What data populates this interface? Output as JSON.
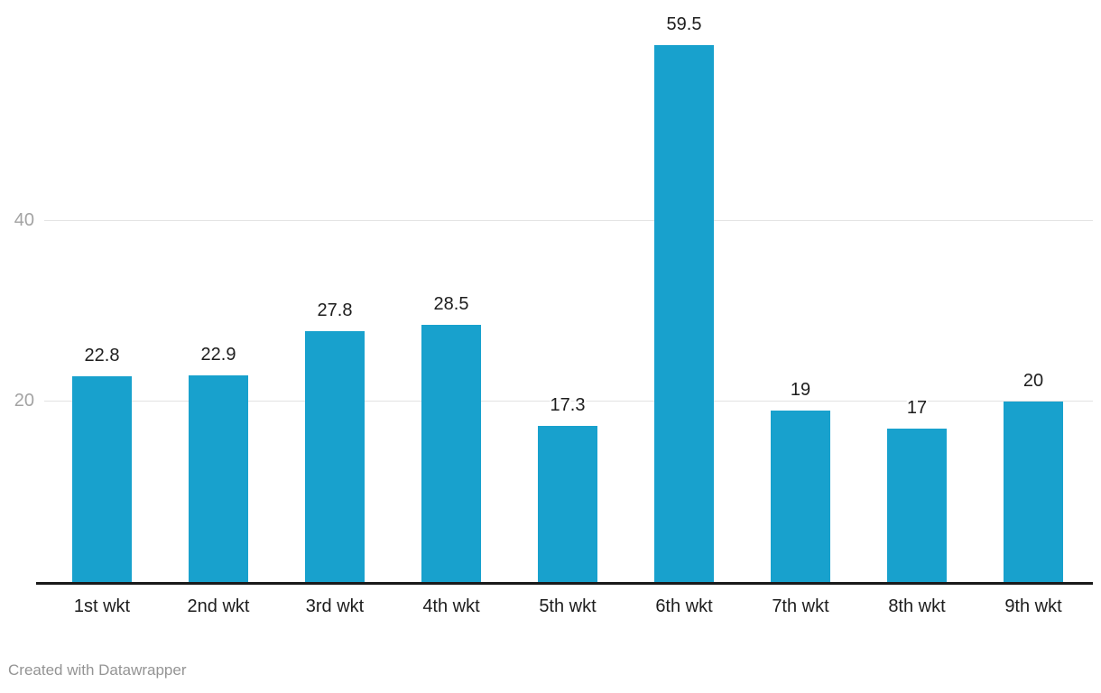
{
  "footer": {
    "attribution": "Created with Datawrapper"
  },
  "chart_data": {
    "type": "bar",
    "title": "",
    "subtitle": "",
    "xlabel": "",
    "ylabel": "",
    "categories": [
      "1st wkt",
      "2nd wkt",
      "3rd wkt",
      "4th wkt",
      "5th wkt",
      "6th wkt",
      "7th wkt",
      "8th wkt",
      "9th wkt"
    ],
    "values": [
      22.8,
      22.9,
      27.8,
      28.5,
      17.3,
      59.5,
      19,
      17,
      20
    ],
    "value_labels": [
      "22.8",
      "22.9",
      "27.8",
      "28.5",
      "17.3",
      "59.5",
      "19",
      "17",
      "20"
    ],
    "ylim": [
      0,
      60
    ],
    "yticks": [
      20,
      40
    ],
    "ytick_labels": [
      "20",
      "40"
    ],
    "grid": true,
    "legend": false,
    "colors": {
      "bar": "#18a1cd",
      "axis_line": "#1a1a1a",
      "gridline": "#e3e3e3",
      "ytick_label": "#a3a3a3",
      "value_label": "#1d1d1d",
      "category_label": "#1d1d1d",
      "attribution": "#949494",
      "background": "#ffffff"
    }
  }
}
